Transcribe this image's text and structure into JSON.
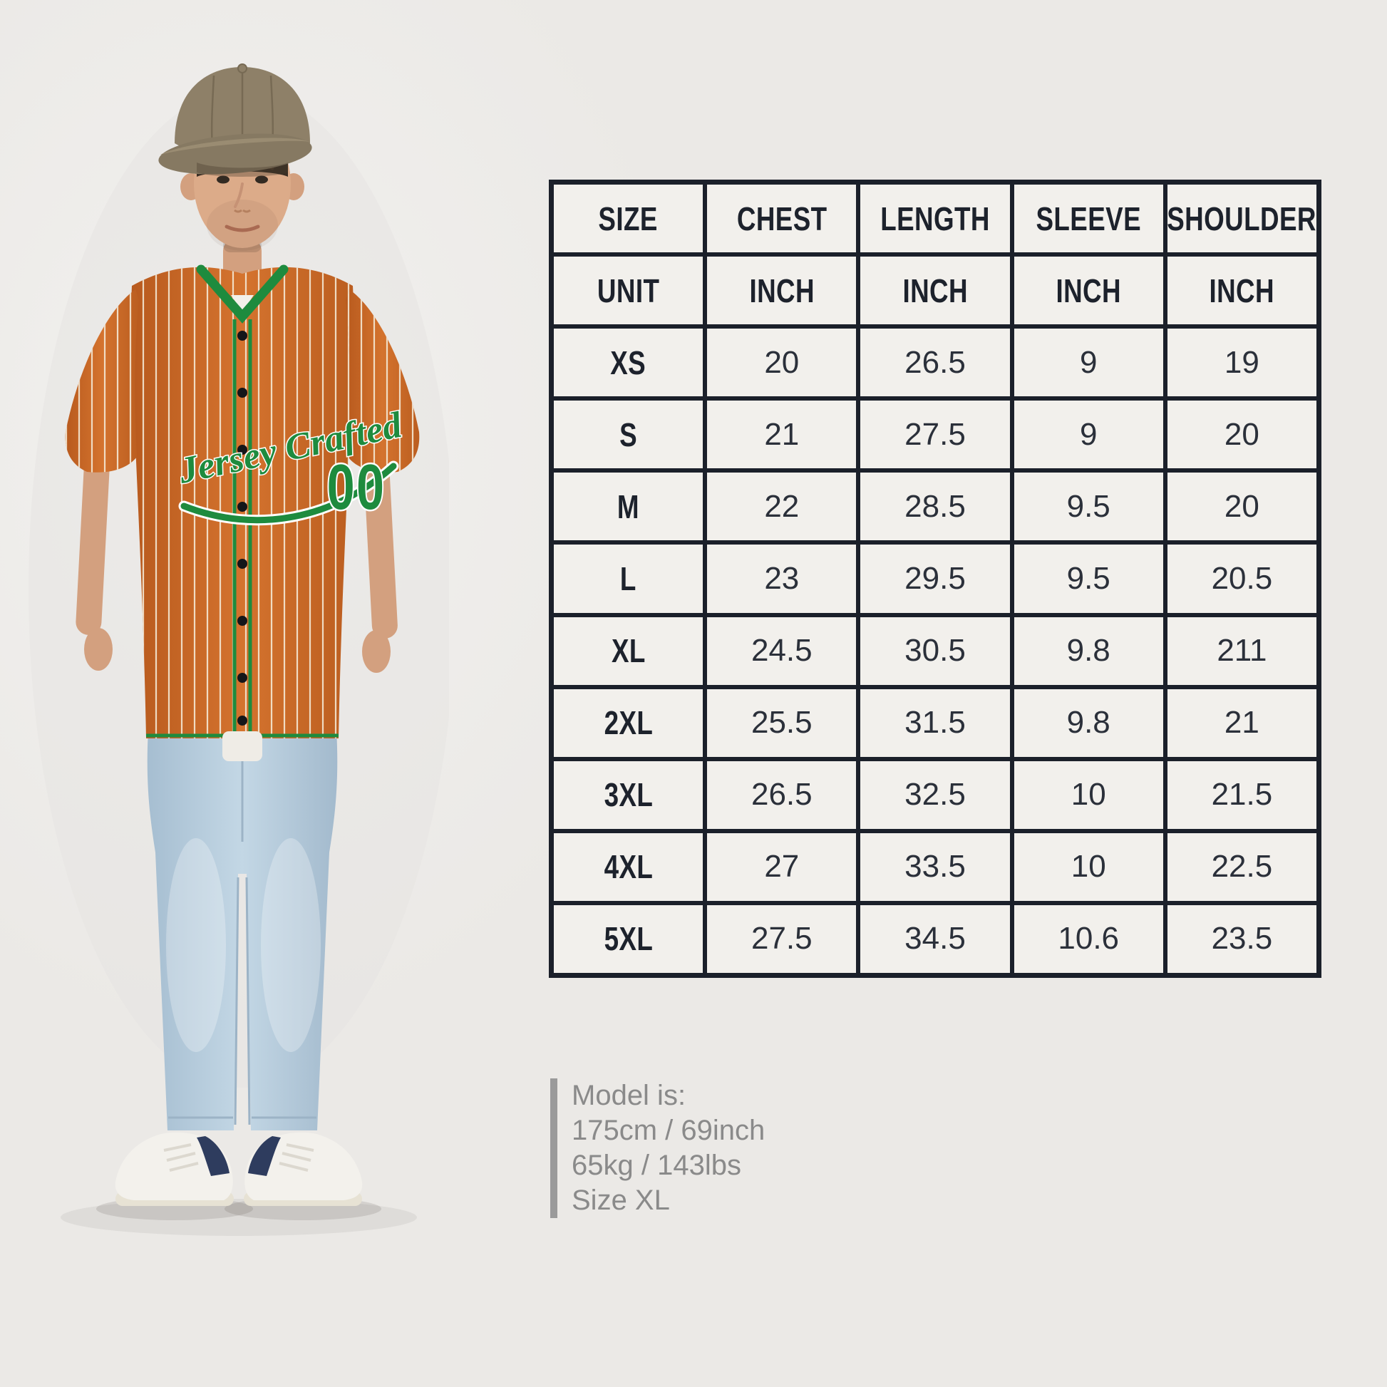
{
  "jersey": {
    "script_text": "Jersey Crafted",
    "number": "00"
  },
  "model_info": {
    "lines": [
      "Model is:",
      "175cm / 69inch",
      "65kg / 143lbs",
      "Size XL"
    ]
  },
  "colors": {
    "background": "#ebe9e6",
    "table_border": "#1b202a",
    "table_cell_bg": "#f2f0ec",
    "table_text": "#1d222c",
    "model_text_gray": "#8a8a8a",
    "jersey_orange": "#c8671f",
    "jersey_trim_green": "#1e8b3e",
    "pinstripe_cream": "#f4e8d4",
    "cap_khaki": "#8e8068",
    "jeans_blue": "#b3c9da",
    "sneaker_navy": "#2e3c5e"
  },
  "chart_data": {
    "type": "table",
    "columns": [
      "SIZE",
      "CHEST",
      "LENGTH",
      "SLEEVE",
      "SHOULDER"
    ],
    "rows": [
      [
        "UNIT",
        "INCH",
        "INCH",
        "INCH",
        "INCH"
      ],
      [
        "XS",
        "20",
        "26.5",
        "9",
        "19"
      ],
      [
        "S",
        "21",
        "27.5",
        "9",
        "20"
      ],
      [
        "M",
        "22",
        "28.5",
        "9.5",
        "20"
      ],
      [
        "L",
        "23",
        "29.5",
        "9.5",
        "20.5"
      ],
      [
        "XL",
        "24.5",
        "30.5",
        "9.8",
        "211"
      ],
      [
        "2XL",
        "25.5",
        "31.5",
        "9.8",
        "21"
      ],
      [
        "3XL",
        "26.5",
        "32.5",
        "10",
        "21.5"
      ],
      [
        "4XL",
        "27",
        "33.5",
        "10",
        "22.5"
      ],
      [
        "5XL",
        "27.5",
        "34.5",
        "10.6",
        "23.5"
      ]
    ]
  }
}
